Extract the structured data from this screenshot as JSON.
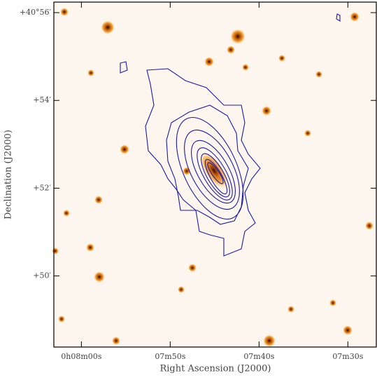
{
  "chart_data": {
    "type": "image",
    "x_label": "Right Ascension (J2000)",
    "y_label": "Declination (J2000)",
    "xlim": [
      483.1,
      446.8
    ],
    "ylim": [
      48.38,
      56.24
    ],
    "xticks": [
      {
        "value": 480,
        "label": "0h08m00s"
      },
      {
        "value": 470,
        "label": "07m50s"
      },
      {
        "value": 460,
        "label": "07m40s"
      },
      {
        "value": 450,
        "label": "07m30s"
      }
    ],
    "yticks": [
      {
        "value": 56,
        "label": "+40°56′"
      },
      {
        "value": 54,
        "label": "+54′"
      },
      {
        "value": 52,
        "label": "+52′"
      },
      {
        "value": 50,
        "label": "+50′"
      }
    ],
    "contour_color": "#1a1aa8"
  }
}
